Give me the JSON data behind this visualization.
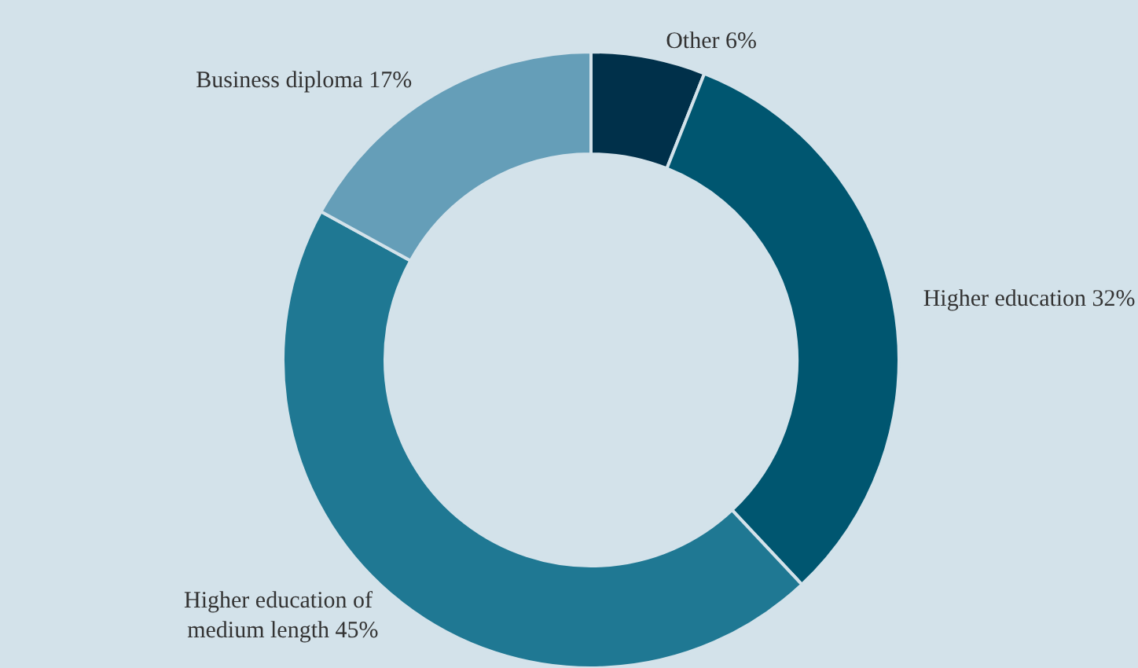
{
  "chart_data": {
    "type": "donut",
    "categories": [
      "Other",
      "Higher education",
      "Higher education of medium length",
      "Business diploma"
    ],
    "values": [
      6,
      32,
      45,
      17
    ],
    "value_labels": [
      "6%",
      "32%",
      "45%",
      "17%"
    ],
    "colors": [
      "#00304a",
      "#005670",
      "#1f7893",
      "#659eb8"
    ]
  }
}
